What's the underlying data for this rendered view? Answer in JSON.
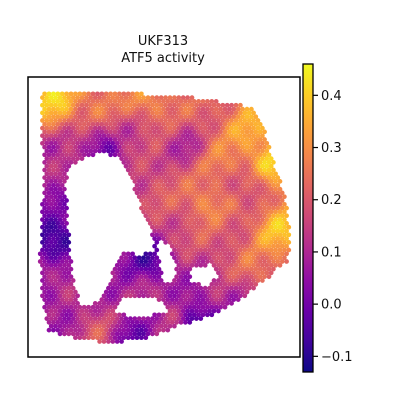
{
  "chart_data": {
    "type": "heatmap",
    "subtype": "spatial-transcriptomics-hex-spots",
    "title": "UKF313",
    "subtitle": "ATF5 activity",
    "xlabel": "",
    "ylabel": "",
    "grid": false,
    "axis_ticks": false,
    "colormap": "plasma",
    "colorbar": {
      "range": [
        -0.13,
        0.46
      ],
      "ticks": [
        -0.1,
        0.0,
        0.1,
        0.2,
        0.3,
        0.4
      ],
      "tick_labels": [
        "−0.1",
        "0.0",
        "0.1",
        "0.2",
        "0.3",
        "0.4"
      ],
      "placement": "right"
    },
    "regions": [
      {
        "x": 0.1,
        "y": 0.08,
        "value": 0.4
      },
      {
        "x": 0.25,
        "y": 0.1,
        "value": 0.28
      },
      {
        "x": 0.45,
        "y": 0.08,
        "value": 0.3
      },
      {
        "x": 0.65,
        "y": 0.12,
        "value": 0.22
      },
      {
        "x": 0.82,
        "y": 0.2,
        "value": 0.35
      },
      {
        "x": 0.9,
        "y": 0.3,
        "value": 0.4
      },
      {
        "x": 0.72,
        "y": 0.3,
        "value": 0.28
      },
      {
        "x": 0.58,
        "y": 0.25,
        "value": 0.1
      },
      {
        "x": 0.35,
        "y": 0.22,
        "value": 0.15
      },
      {
        "x": 0.28,
        "y": 0.25,
        "value": 0.0
      },
      {
        "x": 0.12,
        "y": 0.3,
        "value": 0.1
      },
      {
        "x": 0.08,
        "y": 0.45,
        "value": 0.05
      },
      {
        "x": 0.1,
        "y": 0.58,
        "value": -0.1
      },
      {
        "x": 0.12,
        "y": 0.72,
        "value": 0.12
      },
      {
        "x": 0.1,
        "y": 0.85,
        "value": 0.05
      },
      {
        "x": 0.25,
        "y": 0.9,
        "value": 0.2
      },
      {
        "x": 0.38,
        "y": 0.92,
        "value": 0.0
      },
      {
        "x": 0.52,
        "y": 0.85,
        "value": 0.15
      },
      {
        "x": 0.62,
        "y": 0.88,
        "value": -0.08
      },
      {
        "x": 0.75,
        "y": 0.8,
        "value": 0.1
      },
      {
        "x": 0.85,
        "y": 0.68,
        "value": 0.25
      },
      {
        "x": 0.92,
        "y": 0.55,
        "value": 0.38
      },
      {
        "x": 0.75,
        "y": 0.55,
        "value": 0.2
      },
      {
        "x": 0.65,
        "y": 0.45,
        "value": 0.3
      },
      {
        "x": 0.55,
        "y": 0.55,
        "value": 0.18
      },
      {
        "x": 0.45,
        "y": 0.65,
        "value": -0.05
      },
      {
        "x": 0.4,
        "y": 0.78,
        "value": 0.1
      },
      {
        "x": 0.8,
        "y": 0.4,
        "value": 0.15
      },
      {
        "x": 0.5,
        "y": 0.4,
        "value": 0.2
      }
    ]
  }
}
